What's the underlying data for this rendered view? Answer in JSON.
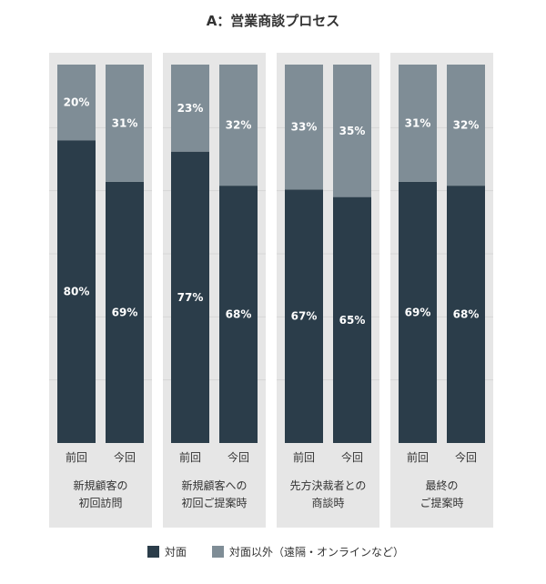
{
  "chart_data": {
    "type": "bar",
    "stacked": true,
    "percent": true,
    "title": "A：営業商談プロセス",
    "groups": [
      {
        "label_lines": [
          "新規顧客の",
          "初回訪問"
        ],
        "bars": [
          {
            "tick": "前回",
            "values": [
              80,
              20
            ]
          },
          {
            "tick": "今回",
            "values": [
              69,
              31
            ]
          }
        ]
      },
      {
        "label_lines": [
          "新規顧客への",
          "初回ご提案時"
        ],
        "bars": [
          {
            "tick": "前回",
            "values": [
              77,
              23
            ]
          },
          {
            "tick": "今回",
            "values": [
              68,
              32
            ]
          }
        ]
      },
      {
        "label_lines": [
          "先方決裁者との",
          "商談時"
        ],
        "bars": [
          {
            "tick": "前回",
            "values": [
              67,
              33
            ]
          },
          {
            "tick": "今回",
            "values": [
              65,
              35
            ]
          }
        ]
      },
      {
        "label_lines": [
          "最終の",
          "ご提案時"
        ],
        "bars": [
          {
            "tick": "前回",
            "values": [
              69,
              31
            ]
          },
          {
            "tick": "今回",
            "values": [
              68,
              32
            ]
          }
        ]
      }
    ],
    "series": [
      {
        "name": "対面",
        "color": "#2b3d4a"
      },
      {
        "name": "対面以外（遠隔・オンラインなど）",
        "color": "#7f8d96"
      }
    ],
    "ylim": [
      0,
      100
    ],
    "grid": true,
    "legend_position": "bottom"
  }
}
